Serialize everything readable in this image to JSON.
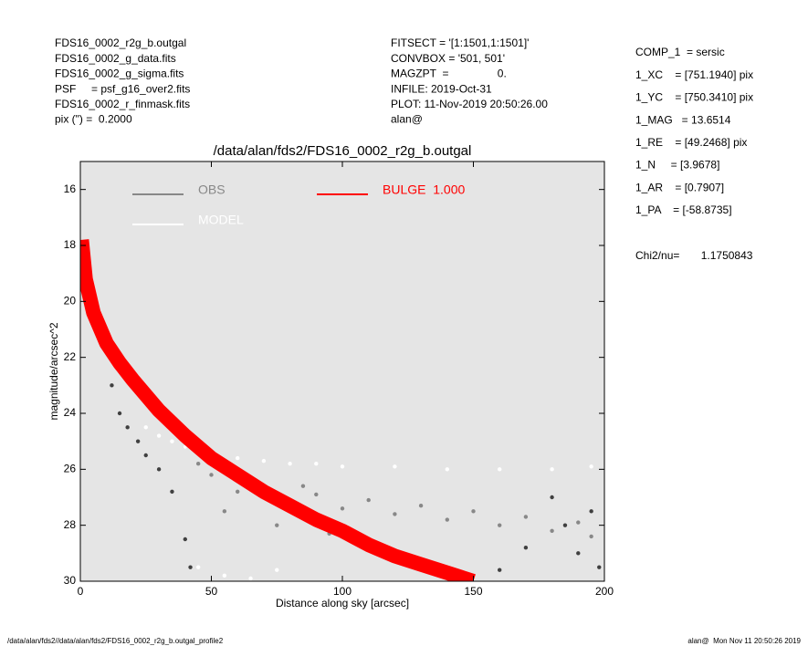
{
  "header": {
    "left": [
      "FDS16_0002_r2g_b.outgal",
      "FDS16_0002_g_data.fits",
      "FDS16_0002_g_sigma.fits",
      "PSF     = psf_g16_over2.fits",
      "FDS16_0002_r_finmask.fits",
      "pix (\") =  0.2000"
    ],
    "center": [
      "FITSECT = '[1:1501,1:1501]'",
      "CONVBOX = '501, 501'",
      "MAGZPT  =                0.",
      "INFILE: 2019-Oct-31",
      "PLOT: 11-Nov-2019 20:50:26.00",
      "alan@"
    ],
    "right": [
      "COMP_1  = sersic",
      "1_XC    = [751.1940] pix",
      "1_YC    = [750.3410] pix",
      "1_MAG   = 13.6514",
      "1_RE    = [49.2468] pix",
      "1_N     = [3.9678]",
      "1_AR    = [0.7907]",
      "1_PA    = [-58.8735]"
    ],
    "chi2": "Chi2/nu=       1.1750843"
  },
  "footer": {
    "left": "/data/alan/fds2//data/alan/fds2/FDS16_0002_r2g_b.outgal_profile2",
    "right": "alan@  Mon Nov 11 20:50:26 2019"
  },
  "chart_data": {
    "type": "scatter",
    "title": "/data/alan/fds2/FDS16_0002_r2g_b.outgal",
    "xlabel": "Distance along sky [arcsec]",
    "ylabel": "magnitude/arcsec^2",
    "xlim": [
      0,
      200
    ],
    "xticks": [
      0,
      50,
      100,
      150,
      200
    ],
    "ylim": [
      15,
      30
    ],
    "yticks": [
      16,
      18,
      20,
      22,
      24,
      26,
      28,
      30
    ],
    "y_inverted": true,
    "background": "#e5e5e5",
    "series": [
      {
        "name": "OBS",
        "color": "#888888",
        "type": "scatter",
        "x": [
          5,
          10,
          15,
          20,
          25,
          30,
          35,
          40,
          45,
          50,
          60,
          70,
          80,
          90,
          100,
          110,
          120,
          130,
          140,
          150,
          160,
          170,
          180,
          190,
          195,
          55,
          65,
          75,
          85,
          95
        ],
        "values": [
          19.8,
          21.2,
          22,
          22.6,
          23.2,
          24,
          24.6,
          25.2,
          25.8,
          26.2,
          26.8,
          27,
          27.2,
          26.9,
          27.4,
          27.1,
          27.6,
          27.3,
          27.8,
          27.5,
          28,
          27.7,
          28.2,
          27.9,
          28.4,
          27.5,
          26.5,
          28,
          26.6,
          28.3
        ]
      },
      {
        "name": "MODEL",
        "color": "#ffffff",
        "type": "scatter",
        "x": [
          25,
          30,
          35,
          40,
          45,
          50,
          60,
          70,
          80,
          90,
          100,
          120,
          140,
          160,
          180,
          195,
          45,
          55,
          65,
          75
        ],
        "values": [
          24.5,
          24.8,
          25,
          25.2,
          25.4,
          25.5,
          25.6,
          25.7,
          25.8,
          25.8,
          25.9,
          25.9,
          26,
          26,
          26,
          25.9,
          29.5,
          29.8,
          29.9,
          29.6
        ]
      },
      {
        "name": "BULGE  1.000",
        "color": "#ff0000",
        "type": "line",
        "x": [
          0.5,
          2,
          5,
          10,
          15,
          20,
          30,
          40,
          50,
          60,
          70,
          80,
          90,
          100,
          110,
          120,
          130,
          140,
          150
        ],
        "values": [
          17.8,
          19.2,
          20.4,
          21.5,
          22.2,
          22.8,
          23.9,
          24.8,
          25.6,
          26.2,
          26.8,
          27.3,
          27.8,
          28.2,
          28.7,
          29.1,
          29.4,
          29.7,
          30
        ]
      },
      {
        "color": "#404040",
        "type": "scatter",
        "x": [
          12,
          15,
          18,
          22,
          25,
          30,
          35,
          40,
          42,
          180,
          185,
          190,
          195,
          198,
          170,
          160
        ],
        "values": [
          23,
          24,
          24.5,
          25,
          25.5,
          26,
          26.8,
          28.5,
          29.5,
          27,
          28,
          29,
          27.5,
          29.5,
          28.8,
          29.6
        ]
      }
    ]
  }
}
